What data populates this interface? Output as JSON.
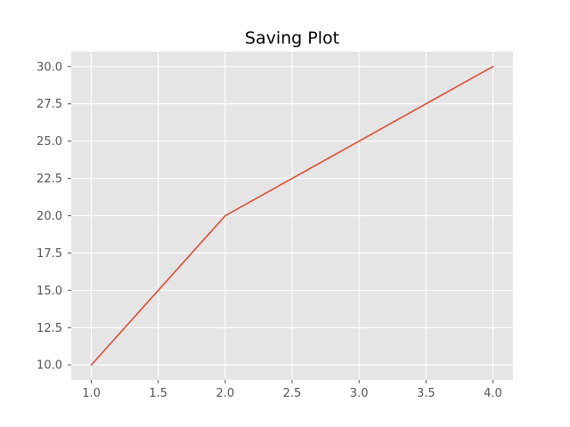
{
  "chart_data": {
    "type": "line",
    "title": "Saving Plot",
    "xlabel": "",
    "ylabel": "",
    "x": [
      1.0,
      2.0,
      3.0,
      4.0
    ],
    "series": [
      {
        "values": [
          10,
          20,
          25,
          30
        ]
      }
    ],
    "xlim": [
      0.85,
      4.15
    ],
    "ylim": [
      9.0,
      31.0
    ],
    "xticks": [
      1.0,
      1.5,
      2.0,
      2.5,
      3.0,
      3.5,
      4.0
    ],
    "xtick_labels": [
      "1.0",
      "1.5",
      "2.0",
      "2.5",
      "3.0",
      "3.5",
      "4.0"
    ],
    "yticks": [
      10.0,
      12.5,
      15.0,
      17.5,
      20.0,
      22.5,
      25.0,
      27.5,
      30.0
    ],
    "ytick_labels": [
      "10.0",
      "12.5",
      "15.0",
      "17.5",
      "20.0",
      "22.5",
      "25.0",
      "27.5",
      "30.0"
    ],
    "grid": true,
    "legend": "none",
    "colors": {
      "plot_background": "#e5e5e5",
      "grid": "#ffffff",
      "line": "#e24a33",
      "tick_text": "#555555",
      "title": "#000000"
    }
  }
}
